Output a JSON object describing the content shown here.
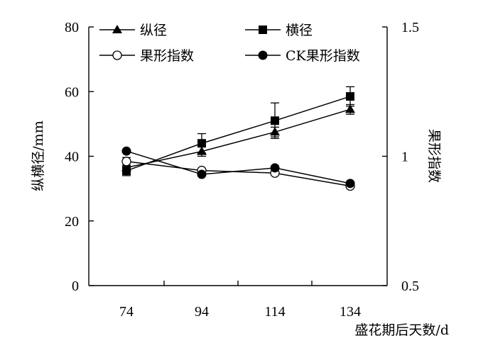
{
  "chart_data": {
    "type": "line",
    "categories": [
      "74",
      "94",
      "114",
      "134"
    ],
    "xlabel": "盛花期后天数/d",
    "ylabel": "纵横径/mm",
    "y2label": "果形指数",
    "ylim": [
      0,
      80
    ],
    "yticks": [
      "0",
      "20",
      "40",
      "60",
      "80"
    ],
    "y2lim": [
      0.5,
      1.5
    ],
    "y2ticks": [
      "0.5",
      "1",
      "1.5"
    ],
    "grid": false,
    "legend_position": "top",
    "series": [
      {
        "name": "纵径",
        "axis": "left",
        "marker": "triangle-filled",
        "values": [
          36.5,
          41.5,
          47.5,
          54.5
        ],
        "errors": [
          1.5,
          1.5,
          1.5,
          1.5
        ]
      },
      {
        "name": "横径",
        "axis": "left",
        "marker": "square-filled",
        "values": [
          35.5,
          44.0,
          51.0,
          58.5
        ],
        "errors": [
          1.5,
          3.0,
          5.5,
          3.0
        ]
      },
      {
        "name": "果形指数",
        "axis": "right",
        "marker": "circle-open",
        "values": [
          0.98,
          0.945,
          0.935,
          0.885
        ],
        "errors": [
          0.015,
          0.0,
          0.0,
          0.0
        ]
      },
      {
        "name": "CK果形指数",
        "axis": "right",
        "marker": "circle-filled",
        "values": [
          1.02,
          0.93,
          0.955,
          0.895
        ],
        "errors": [
          0,
          0,
          0,
          0
        ]
      }
    ]
  }
}
